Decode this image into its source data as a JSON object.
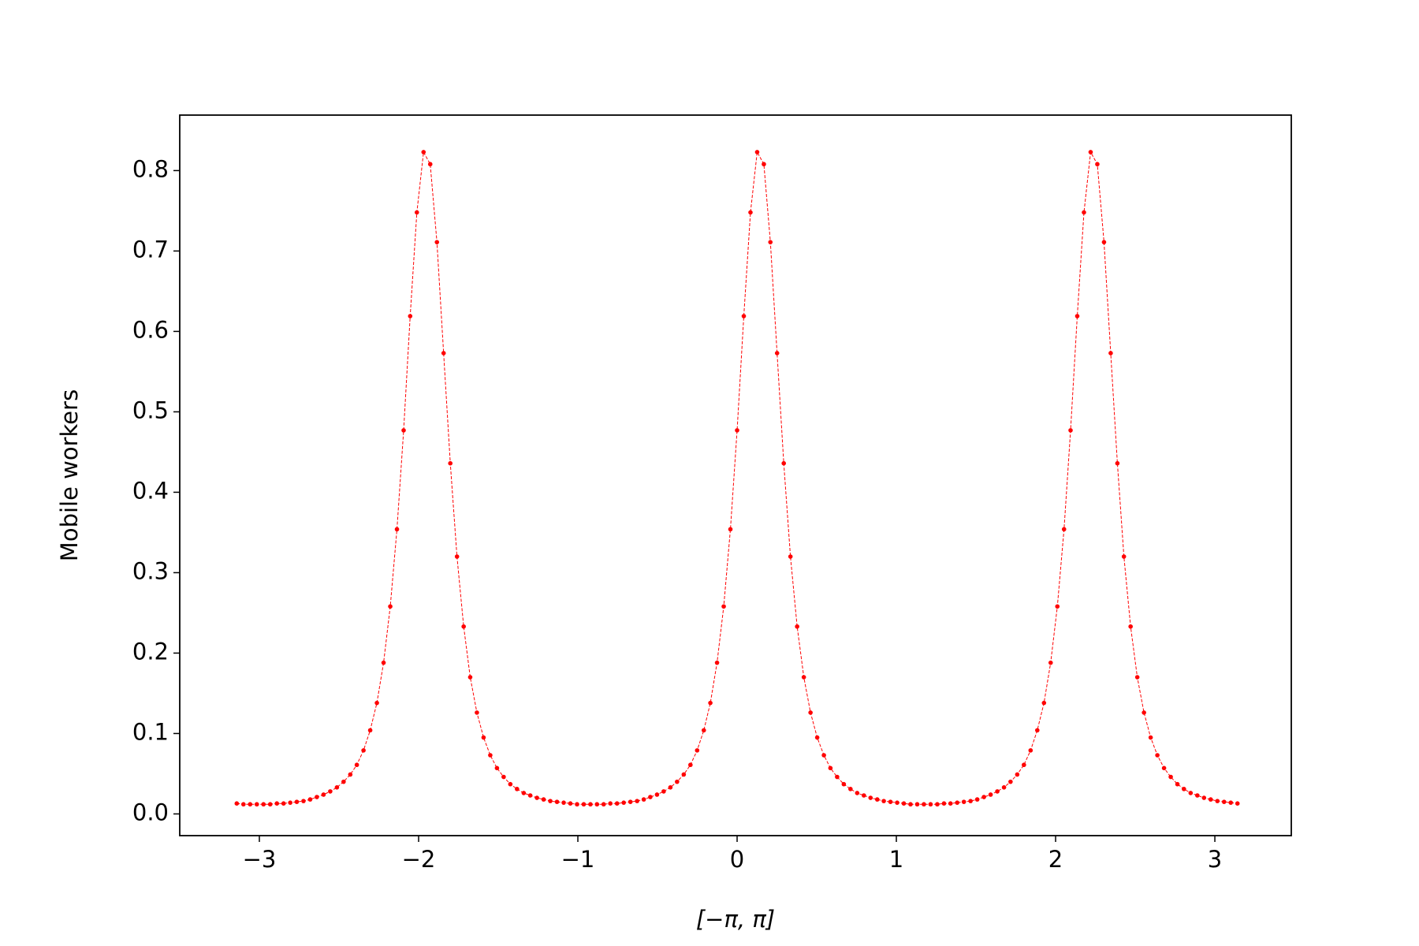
{
  "chart_data": {
    "type": "line",
    "xlabel": "[−π, π]",
    "ylabel": "Mobile workers",
    "x": [
      -3.142,
      -3.1,
      -3.058,
      -3.016,
      -2.974,
      -2.932,
      -2.89,
      -2.848,
      -2.806,
      -2.765,
      -2.723,
      -2.681,
      -2.639,
      -2.597,
      -2.555,
      -2.513,
      -2.471,
      -2.429,
      -2.388,
      -2.346,
      -2.304,
      -2.262,
      -2.22,
      -2.178,
      -2.136,
      -2.094,
      -2.053,
      -2.011,
      -1.969,
      -1.927,
      -1.885,
      -1.843,
      -1.801,
      -1.759,
      -1.717,
      -1.676,
      -1.634,
      -1.592,
      -1.55,
      -1.508,
      -1.466,
      -1.424,
      -1.382,
      -1.34,
      -1.299,
      -1.257,
      -1.215,
      -1.173,
      -1.131,
      -1.089,
      -1.047,
      -1.005,
      -0.963,
      -0.921,
      -0.88,
      -0.838,
      -0.796,
      -0.754,
      -0.712,
      -0.67,
      -0.628,
      -0.586,
      -0.545,
      -0.503,
      -0.461,
      -0.419,
      -0.377,
      -0.335,
      -0.293,
      -0.251,
      -0.209,
      -0.168,
      -0.126,
      -0.084,
      -0.042,
      0.0,
      0.042,
      0.084,
      0.126,
      0.168,
      0.209,
      0.251,
      0.293,
      0.335,
      0.377,
      0.419,
      0.461,
      0.503,
      0.545,
      0.586,
      0.628,
      0.67,
      0.712,
      0.754,
      0.796,
      0.838,
      0.88,
      0.921,
      0.963,
      1.005,
      1.047,
      1.089,
      1.131,
      1.173,
      1.215,
      1.257,
      1.299,
      1.34,
      1.382,
      1.424,
      1.466,
      1.508,
      1.55,
      1.592,
      1.634,
      1.676,
      1.717,
      1.759,
      1.801,
      1.843,
      1.885,
      1.927,
      1.969,
      2.011,
      2.053,
      2.094,
      2.136,
      2.178,
      2.22,
      2.262,
      2.304,
      2.346,
      2.388,
      2.429,
      2.471,
      2.513,
      2.555,
      2.597,
      2.639,
      2.681,
      2.723,
      2.765,
      2.806,
      2.848,
      2.89,
      2.932,
      2.974,
      3.016,
      3.058,
      3.1,
      3.142
    ],
    "series": [
      {
        "color": "#ff0000",
        "values": [
          0.013,
          0.012,
          0.012,
          0.012,
          0.012,
          0.012,
          0.013,
          0.013,
          0.014,
          0.015,
          0.016,
          0.018,
          0.021,
          0.024,
          0.028,
          0.033,
          0.04,
          0.049,
          0.061,
          0.079,
          0.104,
          0.138,
          0.188,
          0.258,
          0.354,
          0.477,
          0.619,
          0.748,
          0.823,
          0.808,
          0.711,
          0.573,
          0.436,
          0.32,
          0.233,
          0.17,
          0.126,
          0.095,
          0.073,
          0.057,
          0.046,
          0.037,
          0.031,
          0.026,
          0.023,
          0.02,
          0.018,
          0.016,
          0.015,
          0.014,
          0.013,
          0.012,
          0.012,
          0.012,
          0.012,
          0.012,
          0.013,
          0.013,
          0.014,
          0.015,
          0.016,
          0.018,
          0.021,
          0.024,
          0.028,
          0.033,
          0.04,
          0.049,
          0.061,
          0.079,
          0.104,
          0.138,
          0.188,
          0.258,
          0.354,
          0.477,
          0.619,
          0.748,
          0.823,
          0.808,
          0.711,
          0.573,
          0.436,
          0.32,
          0.233,
          0.17,
          0.126,
          0.095,
          0.073,
          0.057,
          0.046,
          0.037,
          0.031,
          0.026,
          0.023,
          0.02,
          0.018,
          0.016,
          0.015,
          0.014,
          0.013,
          0.012,
          0.012,
          0.012,
          0.012,
          0.012,
          0.013,
          0.013,
          0.014,
          0.015,
          0.016,
          0.018,
          0.021,
          0.024,
          0.028,
          0.033,
          0.04,
          0.049,
          0.061,
          0.079,
          0.104,
          0.138,
          0.188,
          0.258,
          0.354,
          0.477,
          0.619,
          0.748,
          0.823,
          0.808,
          0.711,
          0.573,
          0.436,
          0.32,
          0.233,
          0.17,
          0.126,
          0.095,
          0.073,
          0.057,
          0.046,
          0.037,
          0.031,
          0.026,
          0.023,
          0.02,
          0.018,
          0.016,
          0.015,
          0.014,
          0.013
        ]
      }
    ],
    "xlim": [
      -3.5,
      3.48
    ],
    "ylim": [
      -0.027,
      0.869
    ],
    "xticks": [
      {
        "value": -3,
        "label": "−3"
      },
      {
        "value": -2,
        "label": "−2"
      },
      {
        "value": -1,
        "label": "−1"
      },
      0,
      1,
      2,
      3
    ],
    "yticks": [
      {
        "value": 0,
        "label": "0.0"
      },
      0.1,
      0.2,
      0.3,
      0.4,
      0.5,
      0.6,
      0.7,
      0.8
    ],
    "grid": false
  }
}
